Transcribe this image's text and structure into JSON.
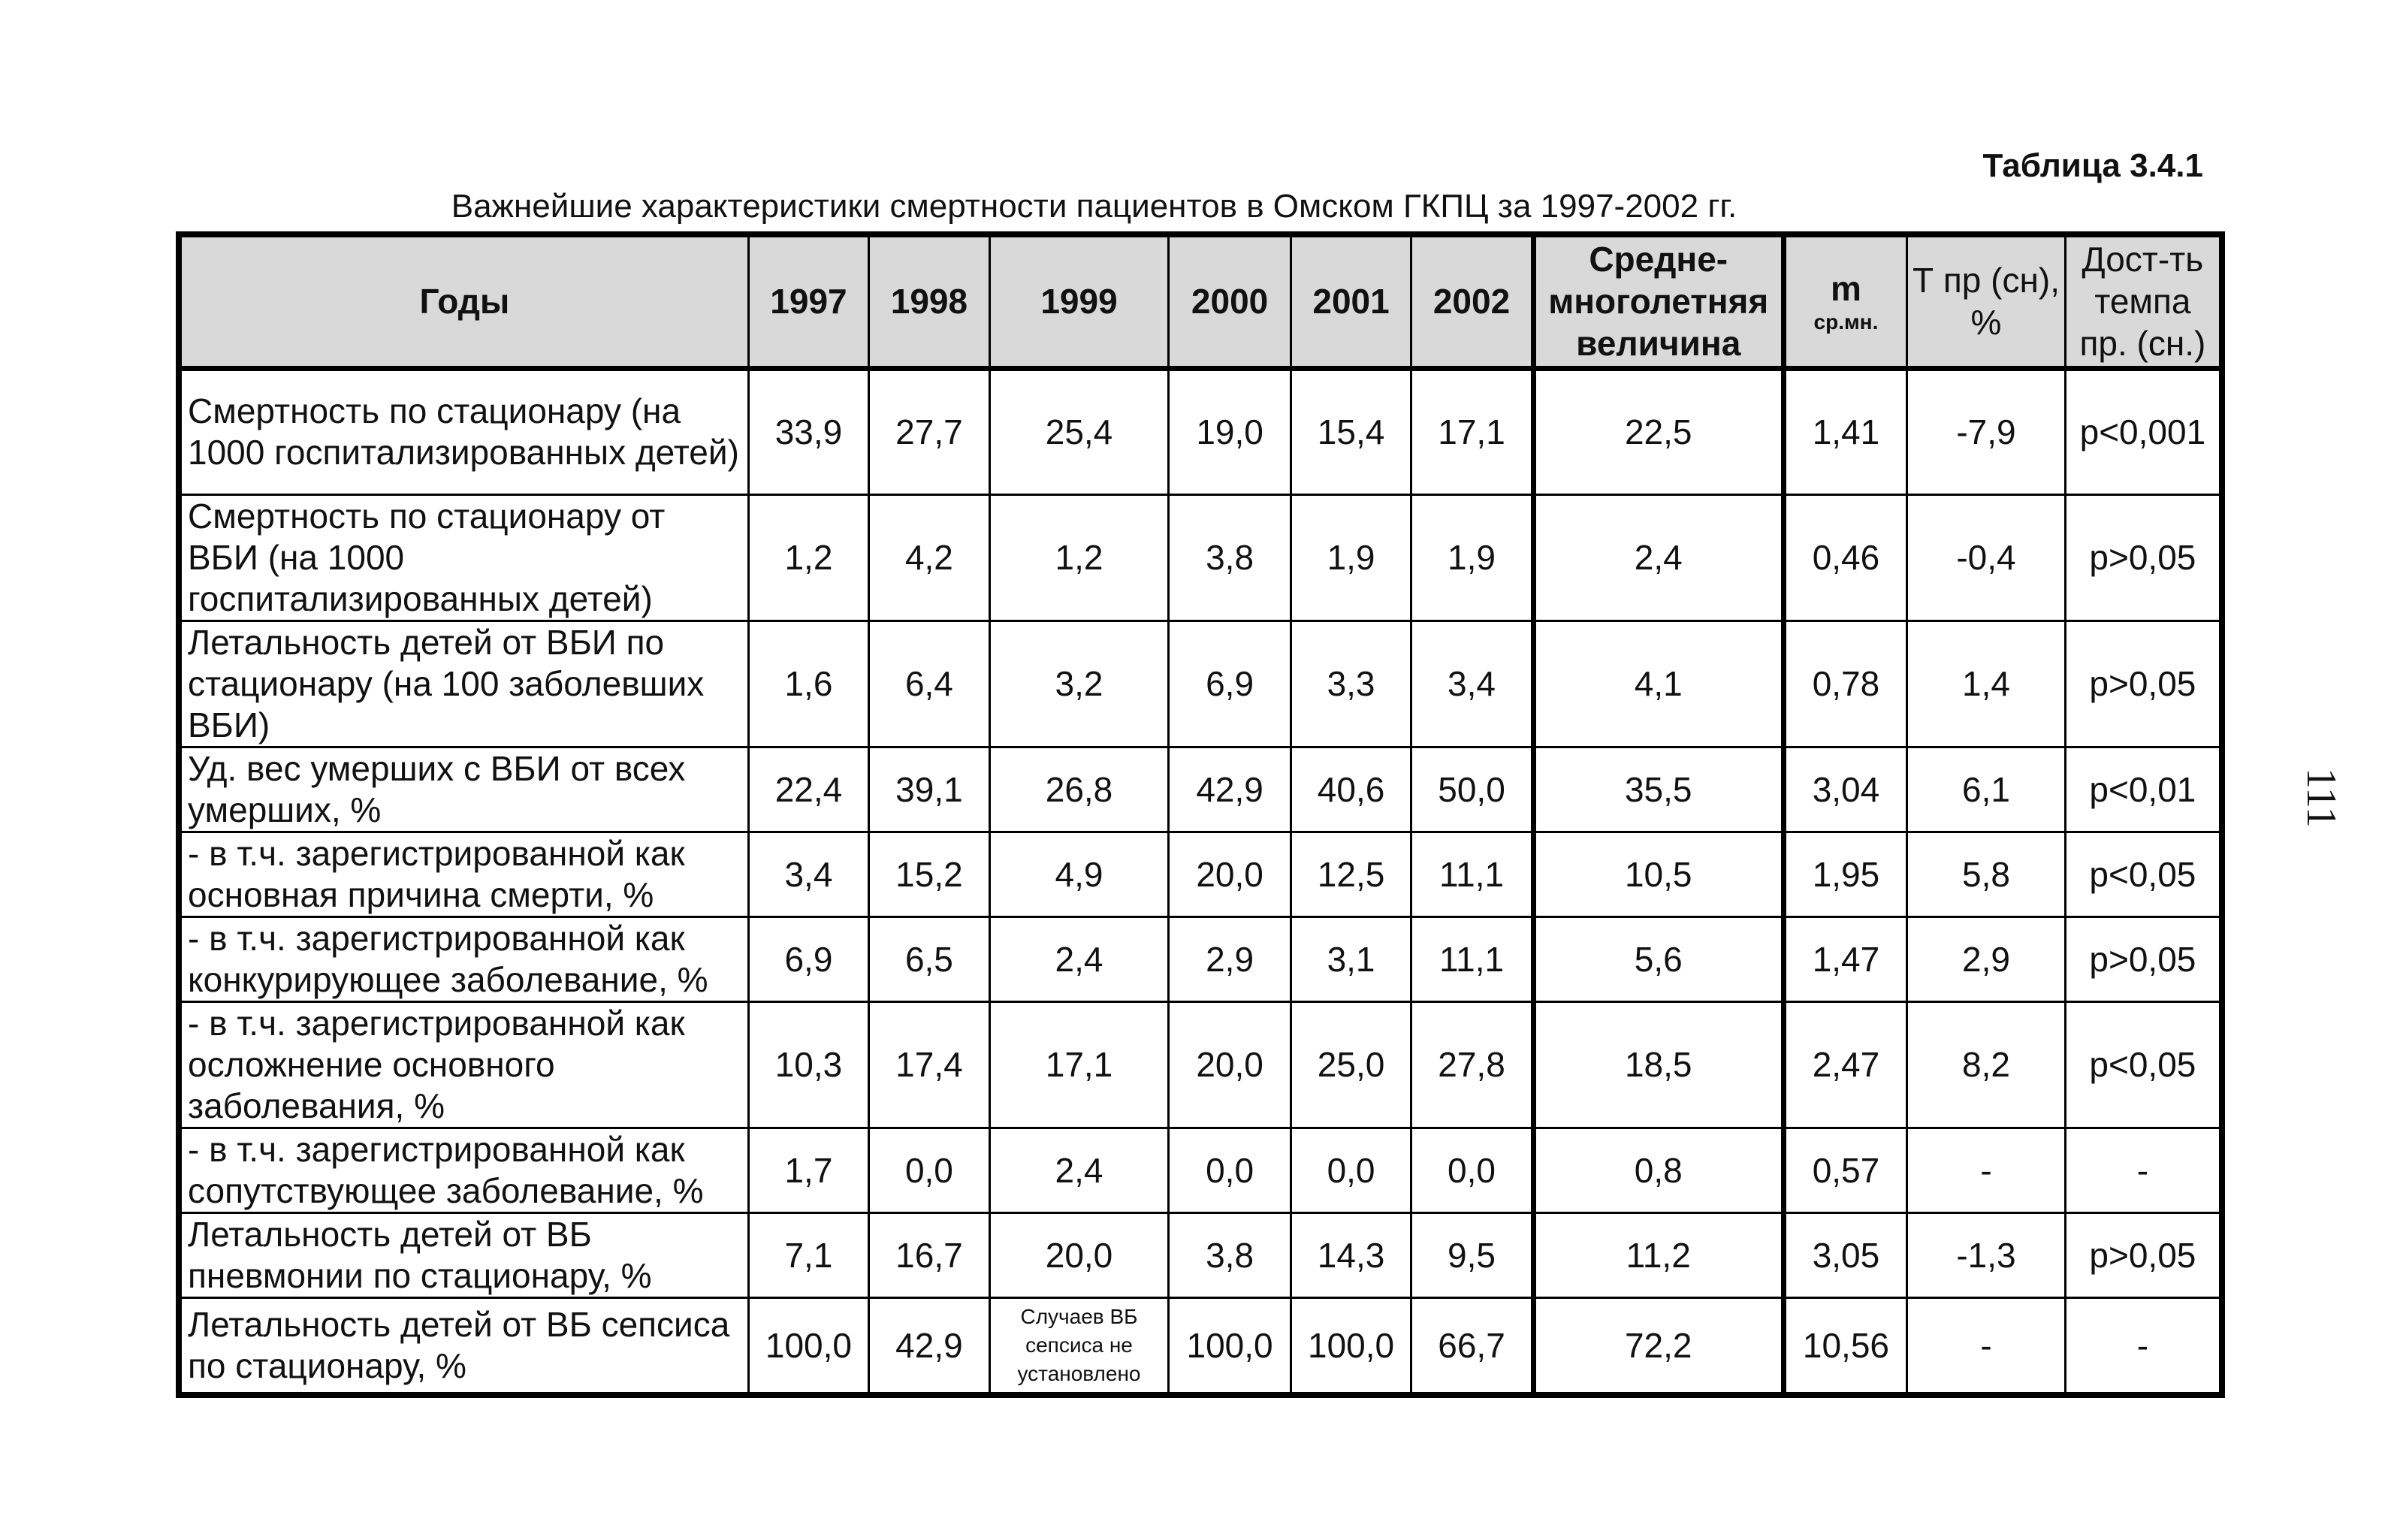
{
  "document": {
    "table_label": "Таблица 3.4.1",
    "caption": "Важнейшие характеристики смертности пациентов в Омском ГКПЦ за 1997-2002 гг.",
    "page_number": "111"
  },
  "table": {
    "headers": {
      "indicator": "Годы",
      "y1997": "1997",
      "y1998": "1998",
      "y1999": "1999",
      "y2000": "2000",
      "y2001": "2001",
      "y2002": "2002",
      "avg": "Средне-многолетняя величина",
      "m_main": "m",
      "m_sub": "ср.мн.",
      "tpr": "Т пр (сн), %",
      "sig": "Дост-ть темпа пр. (сн.)"
    },
    "rows": [
      {
        "indicator": "Смертность по стационару (на 1000 госпитализированных детей)",
        "y1997": "33,9",
        "y1998": "27,7",
        "y1999": "25,4",
        "y2000": "19,0",
        "y2001": "15,4",
        "y2002": "17,1",
        "avg": "22,5",
        "m": "1,41",
        "tpr": "-7,9",
        "sig": "p<0,001"
      },
      {
        "indicator": "Смертность по стационару от ВБИ (на 1000 госпитализированных детей)",
        "y1997": "1,2",
        "y1998": "4,2",
        "y1999": "1,2",
        "y2000": "3,8",
        "y2001": "1,9",
        "y2002": "1,9",
        "avg": "2,4",
        "m": "0,46",
        "tpr": "-0,4",
        "sig": "p>0,05"
      },
      {
        "indicator": "Летальность детей от ВБИ по стационару (на 100 заболевших ВБИ)",
        "y1997": "1,6",
        "y1998": "6,4",
        "y1999": "3,2",
        "y2000": "6,9",
        "y2001": "3,3",
        "y2002": "3,4",
        "avg": "4,1",
        "m": "0,78",
        "tpr": "1,4",
        "sig": "p>0,05"
      },
      {
        "indicator": "Уд. вес умерших с ВБИ от всех умерших, %",
        "y1997": "22,4",
        "y1998": "39,1",
        "y1999": "26,8",
        "y2000": "42,9",
        "y2001": "40,6",
        "y2002": "50,0",
        "avg": "35,5",
        "m": "3,04",
        "tpr": "6,1",
        "sig": "p<0,01"
      },
      {
        "indicator": " - в т.ч. зарегистрированной как основная причина смерти, %",
        "y1997": "3,4",
        "y1998": "15,2",
        "y1999": "4,9",
        "y2000": "20,0",
        "y2001": "12,5",
        "y2002": "11,1",
        "avg": "10,5",
        "m": "1,95",
        "tpr": "5,8",
        "sig": "p<0,05"
      },
      {
        "indicator": " - в т.ч. зарегистрированной как конкурирующее заболевание, %",
        "y1997": "6,9",
        "y1998": "6,5",
        "y1999": "2,4",
        "y2000": "2,9",
        "y2001": "3,1",
        "y2002": "11,1",
        "avg": "5,6",
        "m": "1,47",
        "tpr": "2,9",
        "sig": "p>0,05"
      },
      {
        "indicator": " - в т.ч. зарегистрированной как осложнение основного заболевания, %",
        "y1997": "10,3",
        "y1998": "17,4",
        "y1999": "17,1",
        "y2000": "20,0",
        "y2001": "25,0",
        "y2002": "27,8",
        "avg": "18,5",
        "m": "2,47",
        "tpr": "8,2",
        "sig": "p<0,05"
      },
      {
        "indicator": " - в т.ч. зарегистрированной как сопутствующее заболевание, %",
        "y1997": "1,7",
        "y1998": "0,0",
        "y1999": "2,4",
        "y2000": "0,0",
        "y2001": "0,0",
        "y2002": "0,0",
        "avg": "0,8",
        "m": "0,57",
        "tpr": "-",
        "sig": "-"
      },
      {
        "indicator": "Летальность детей от ВБ пневмонии по стационару, %",
        "y1997": "7,1",
        "y1998": "16,7",
        "y1999": "20,0",
        "y2000": "3,8",
        "y2001": "14,3",
        "y2002": "9,5",
        "avg": "11,2",
        "m": "3,05",
        "tpr": "-1,3",
        "sig": "p>0,05"
      },
      {
        "indicator": "Летальность детей от ВБ сепсиса по стационару, %",
        "y1997": "100,0",
        "y1998": "42,9",
        "y1999": "Случаев ВБ сепсиса не установлено",
        "y2000": "100,0",
        "y2001": "100,0",
        "y2002": "66,7",
        "avg": "72,2",
        "m": "10,56",
        "tpr": "-",
        "sig": "-"
      }
    ]
  }
}
